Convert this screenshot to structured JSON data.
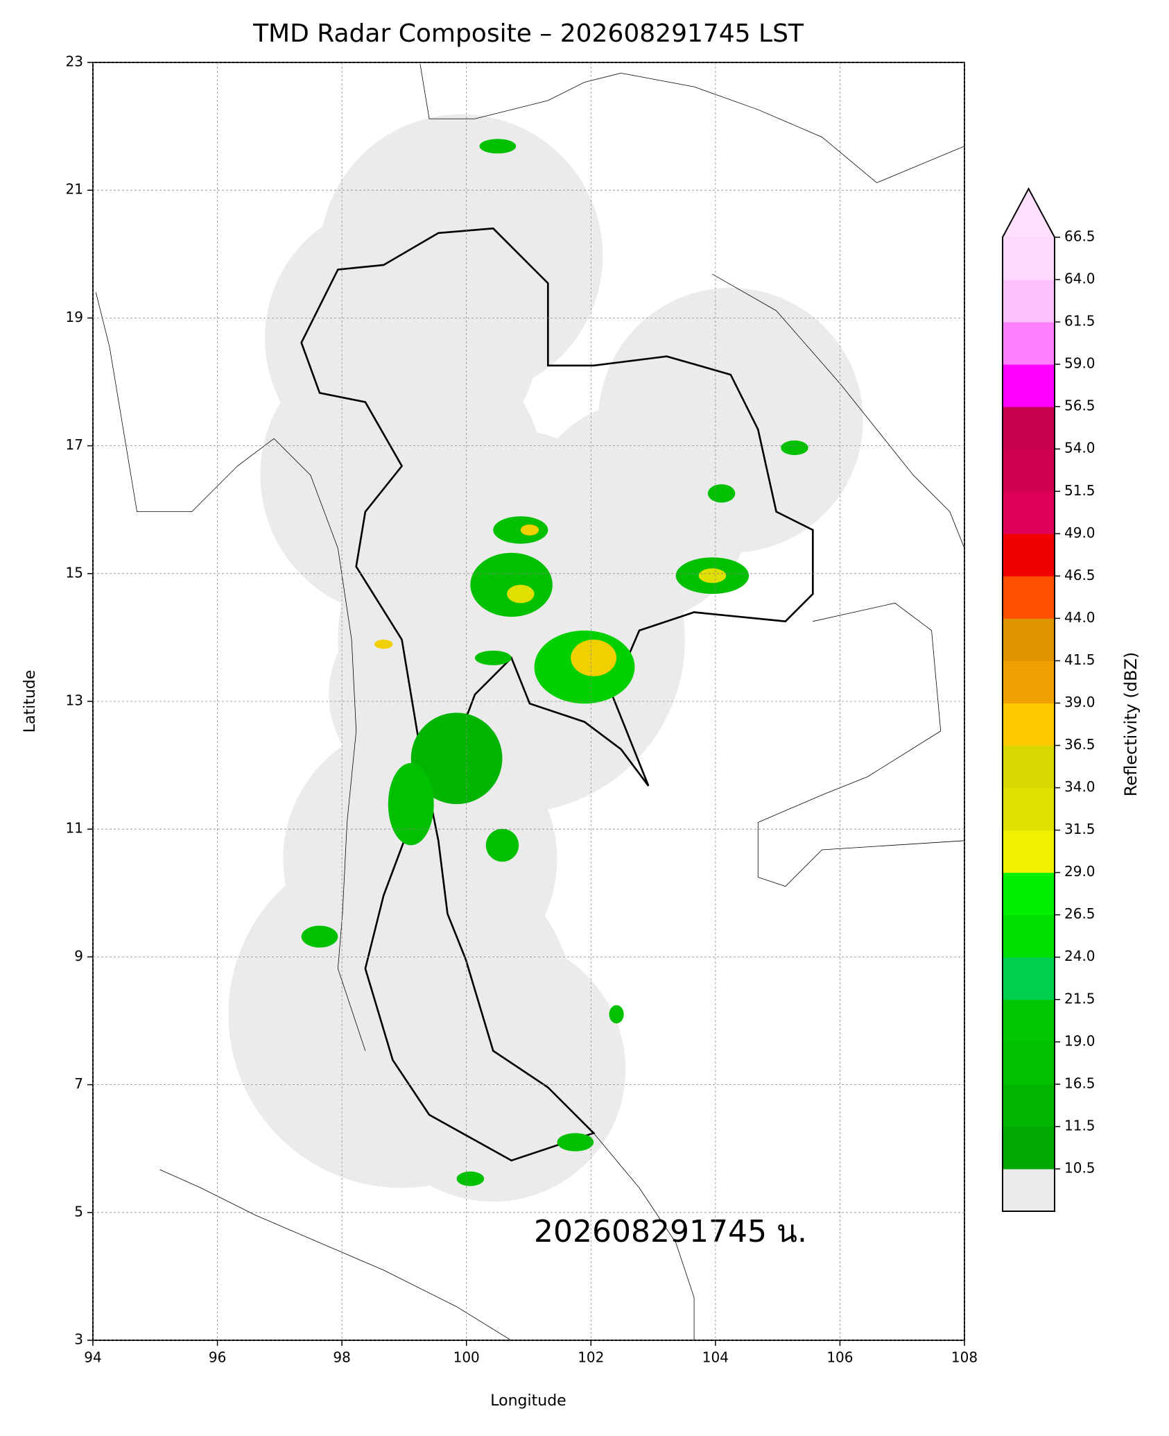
{
  "chart_data": {
    "type": "map",
    "title": "TMD Radar Composite – 202608291745 LST",
    "xlabel": "Longitude",
    "ylabel": "Latitude",
    "annotation": "202608291745 น.",
    "xlim": [
      94,
      108
    ],
    "ylim": [
      3,
      23
    ],
    "xticks": [
      94,
      96,
      98,
      100,
      102,
      104,
      106,
      108
    ],
    "yticks": [
      3,
      5,
      7,
      9,
      11,
      13,
      15,
      17,
      19,
      21,
      23
    ],
    "grid": true,
    "colorbar": {
      "label": "Reflectivity (dBZ)",
      "levels": [
        10.5,
        11.5,
        16.5,
        19.0,
        21.5,
        24.0,
        26.5,
        29.0,
        31.5,
        34.0,
        36.5,
        39.0,
        41.5,
        44.0,
        46.5,
        49.0,
        51.5,
        54.0,
        56.5,
        59.0,
        61.5,
        64.0,
        66.5
      ],
      "colors": [
        "#00a800",
        "#00b400",
        "#00c000",
        "#00c800",
        "#00d050",
        "#00e000",
        "#00f000",
        "#f0f000",
        "#e0e000",
        "#d8d800",
        "#ffc800",
        "#f0a000",
        "#e09600",
        "#ff5000",
        "#f00000",
        "#e0005a",
        "#d00050",
        "#c80050",
        "#ff00ff",
        "#ff80ff",
        "#ffc0ff",
        "#ffd8ff",
        "#ffe0ff"
      ],
      "under_color": "#ebebeb"
    }
  }
}
